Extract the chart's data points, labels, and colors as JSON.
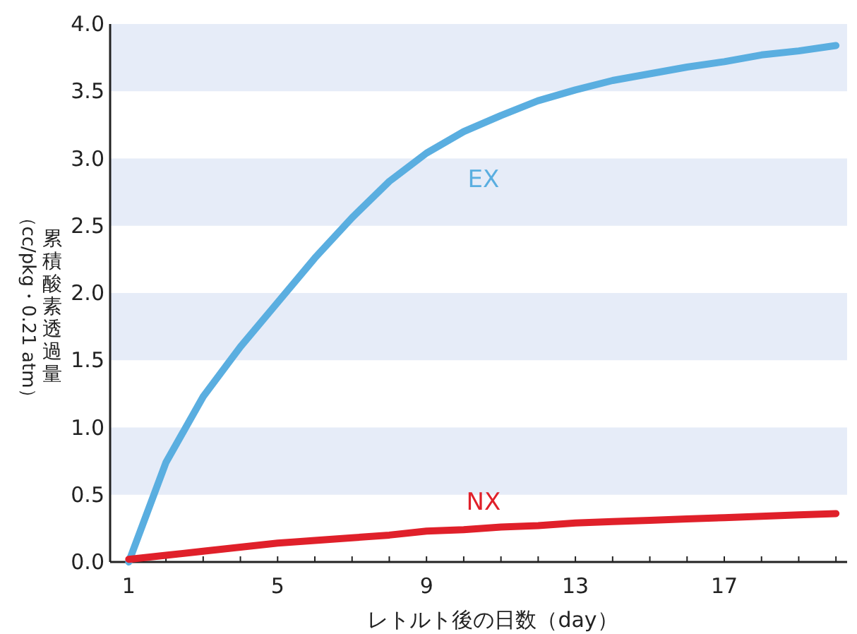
{
  "chart_data": {
    "type": "line",
    "xlabel": "レトルト後の日数（day）",
    "ylabel": "累積酸素透過量（cc/pkg・0.21 atm）",
    "x": [
      1,
      2,
      3,
      4,
      5,
      6,
      7,
      8,
      9,
      10,
      11,
      12,
      13,
      14,
      15,
      16,
      17,
      18,
      19,
      20
    ],
    "series": [
      {
        "name": "EX",
        "color": "#5aaee0",
        "values": [
          0,
          0.74,
          1.23,
          1.6,
          1.93,
          2.26,
          2.56,
          2.83,
          3.04,
          3.2,
          3.32,
          3.43,
          3.51,
          3.58,
          3.63,
          3.68,
          3.72,
          3.77,
          3.8,
          3.84
        ]
      },
      {
        "name": "NX",
        "color": "#e0202a",
        "values": [
          0.02,
          0.05,
          0.08,
          0.11,
          0.14,
          0.16,
          0.18,
          0.2,
          0.23,
          0.24,
          0.26,
          0.27,
          0.29,
          0.3,
          0.31,
          0.32,
          0.33,
          0.34,
          0.35,
          0.36
        ]
      }
    ],
    "xlim": [
      0.5,
      20.3
    ],
    "ylim": [
      0,
      4
    ],
    "xticks": [
      1,
      {
        "value": 2,
        "label": null
      },
      {
        "value": 3,
        "label": null
      },
      {
        "value": 4,
        "label": null
      },
      5,
      {
        "value": 6,
        "label": null
      },
      {
        "value": 7,
        "label": null
      },
      {
        "value": 8,
        "label": null
      },
      9,
      {
        "value": 10,
        "label": null
      },
      {
        "value": 11,
        "label": null
      },
      {
        "value": 12,
        "label": null
      },
      13,
      {
        "value": 14,
        "label": null
      },
      {
        "value": 15,
        "label": null
      },
      {
        "value": 16,
        "label": null
      },
      17,
      {
        "value": 18,
        "label": null
      },
      {
        "value": 19,
        "label": null
      },
      {
        "value": 20,
        "label": null
      }
    ],
    "yticks": [
      {
        "value": 0,
        "label": "0.0"
      },
      0.5,
      {
        "value": 1,
        "label": "1.0"
      },
      1.5,
      {
        "value": 2,
        "label": "2.0"
      },
      2.5,
      {
        "value": 3,
        "label": "3.0"
      },
      3.5,
      {
        "value": 4,
        "label": "4.0"
      }
    ],
    "bands": [
      {
        "axis": "y",
        "from": 0.5,
        "to": 1,
        "color": "#e6ecf8"
      },
      {
        "axis": "y",
        "from": 1.5,
        "to": 2,
        "color": "#e6ecf8"
      },
      {
        "axis": "y",
        "from": 2.5,
        "to": 3,
        "color": "#e6ecf8"
      },
      {
        "axis": "y",
        "from": 3.5,
        "to": 4,
        "color": "#e6ecf8"
      }
    ],
    "grid": false,
    "marker": "none",
    "line_style": "solid"
  }
}
